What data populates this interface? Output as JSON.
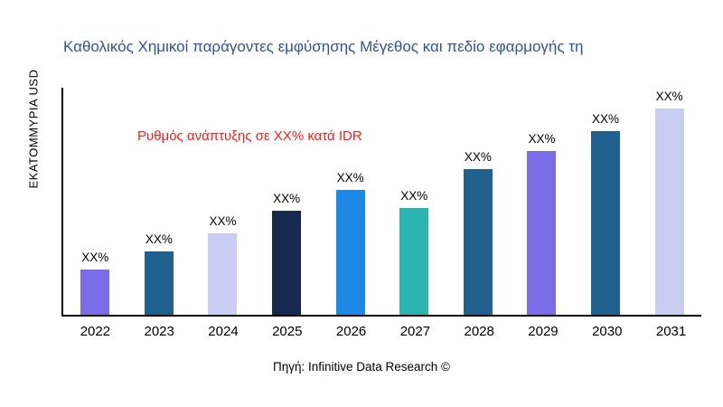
{
  "page": {
    "title": "Καθολικός Χημικοί παράγοντες εμφύσησης Μέγεθος και πεδίο εφαρμογής τη",
    "source": "Πηγή: Infinitive Data Research ©"
  },
  "chart_data": {
    "type": "bar",
    "title": "Καθολικός Χημικοί παράγοντες εμφύσησης Μέγεθος και πεδίο εφαρμογής τη",
    "ylabel": "ΕΚΑΤΟΜΜΥΡΙΑ USD",
    "xlabel": "",
    "annotation": {
      "text": "Ρυθμός ανάπτυξης σε XX% κατά IDR",
      "color": "#FF1A1A"
    },
    "categories": [
      "2022",
      "2023",
      "2024",
      "2025",
      "2026",
      "2027",
      "2028",
      "2029",
      "2030",
      "2031"
    ],
    "values_relative_percent_of_plot_height": [
      20,
      28,
      36,
      46,
      55,
      47,
      64,
      72,
      81,
      91
    ],
    "bar_labels": [
      "XX%",
      "XX%",
      "XX%",
      "XX%",
      "XX%",
      "XX%",
      "XX%",
      "XX%",
      "XX%",
      "XX%"
    ],
    "bar_colors": [
      "#7B6CE8",
      "#20618E",
      "#C9CDF1",
      "#17294E",
      "#1E88E5",
      "#2BB5AE",
      "#20618E",
      "#7B6CE8",
      "#20618E",
      "#C9CDF1"
    ],
    "title_color": "#2F5496",
    "axis_color": "#000000",
    "grid": false,
    "legend": false,
    "note": "Numeric values are not shown in the chart; bars are labeled XX% placeholders. values_relative_percent_of_plot_height are estimated bar heights."
  }
}
